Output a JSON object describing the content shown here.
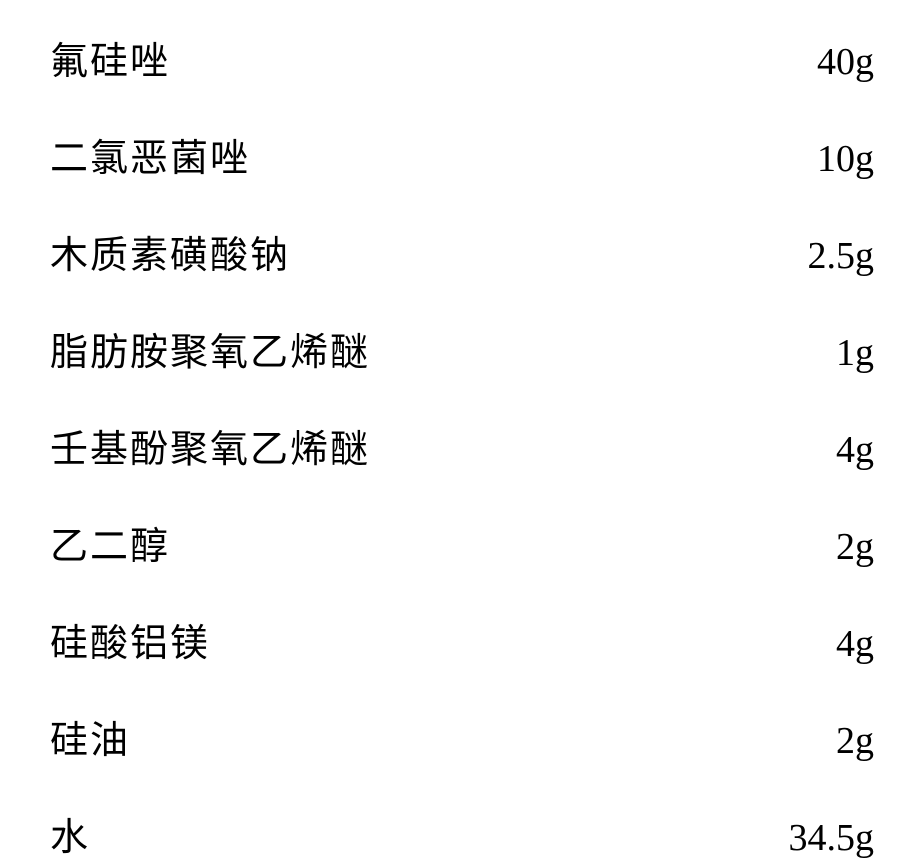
{
  "ingredients_table": {
    "type": "table",
    "background_color": "#ffffff",
    "text_color": "#000000",
    "font_family": "SimSun",
    "font_size": 38,
    "row_spacing": 42,
    "rows": [
      {
        "label": "氟硅唑",
        "value": "40g"
      },
      {
        "label": "二氯恶菌唑",
        "value": "10g"
      },
      {
        "label": "木质素磺酸钠",
        "value": "2.5g"
      },
      {
        "label": "脂肪胺聚氧乙烯醚",
        "value": "1g"
      },
      {
        "label": "壬基酚聚氧乙烯醚",
        "value": "4g"
      },
      {
        "label": "乙二醇",
        "value": "2g"
      },
      {
        "label": "硅酸铝镁",
        "value": "4g"
      },
      {
        "label": "硅油",
        "value": "2g"
      },
      {
        "label": "水",
        "value": "34.5g"
      }
    ]
  }
}
